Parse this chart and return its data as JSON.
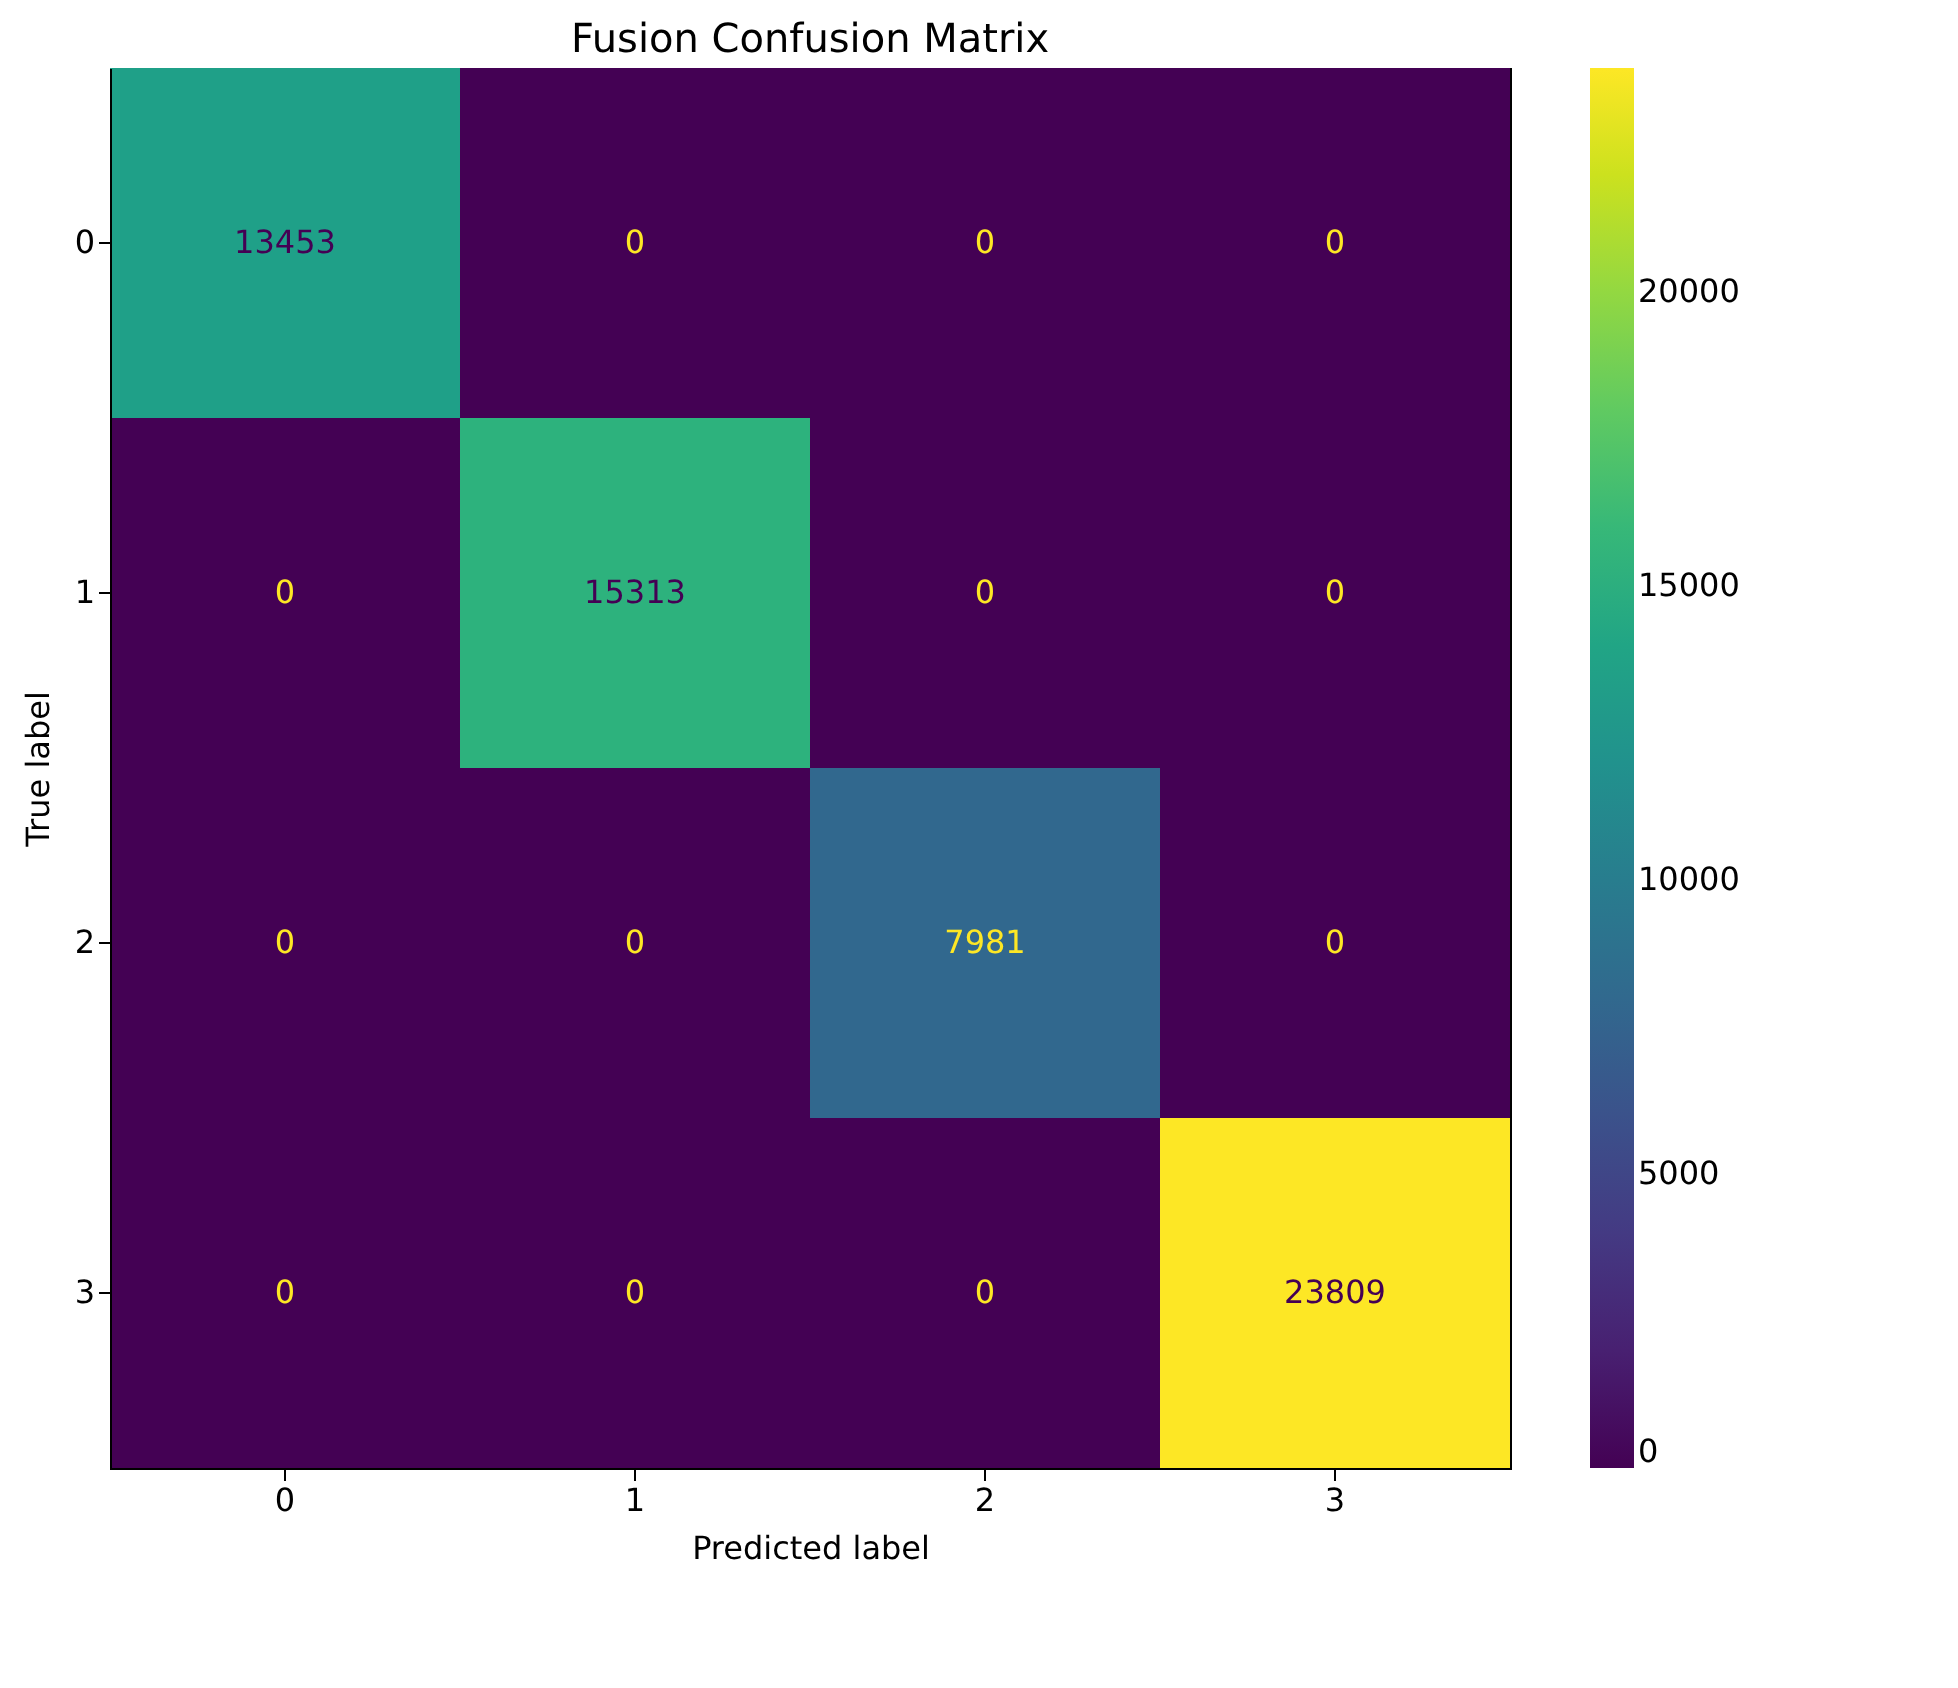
{
  "chart_data": {
    "type": "heatmap",
    "title": "Fusion Confusion Matrix",
    "xlabel": "Predicted label",
    "ylabel": "True label",
    "categories": [
      "0",
      "1",
      "2",
      "3"
    ],
    "y_categories": [
      "0",
      "1",
      "2",
      "3"
    ],
    "cells": [
      [
        13453,
        0,
        0,
        0
      ],
      [
        0,
        15313,
        0,
        0
      ],
      [
        0,
        0,
        7981,
        0
      ],
      [
        0,
        0,
        0,
        23809
      ]
    ],
    "clim": [
      0,
      23809
    ],
    "cticks": [
      0,
      5000,
      10000,
      15000,
      20000
    ],
    "data_labels": true
  }
}
